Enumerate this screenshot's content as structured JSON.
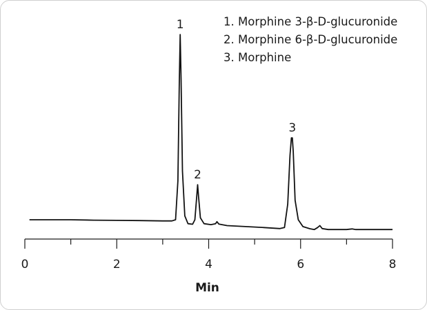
{
  "chart_data": {
    "type": "line",
    "title": "",
    "xlabel": "Min",
    "ylabel": "",
    "xlim": [
      0,
      8
    ],
    "ylim": [
      0,
      1
    ],
    "x_ticks": [
      0,
      2,
      4,
      6,
      8
    ],
    "x_tick_labels": [
      "0",
      "2",
      "4",
      "6",
      "8"
    ],
    "grid": false,
    "legend_position": "top-right",
    "legend": [
      "1. Morphine 3-β-D-glucuronide",
      "2. Morphine 6-β-D-glucuronide",
      "3. Morphine"
    ],
    "peaks": [
      {
        "label": "1",
        "x": 3.38,
        "y": 0.95
      },
      {
        "label": "2",
        "x": 3.76,
        "y": 0.18
      },
      {
        "label": "3",
        "x": 5.82,
        "y": 0.42
      }
    ],
    "series": [
      {
        "x": [
          0.1,
          0.5,
          1.0,
          1.5,
          2.0,
          2.5,
          3.0,
          3.2,
          3.28,
          3.33,
          3.36,
          3.38,
          3.4,
          3.43,
          3.48,
          3.55,
          3.65,
          3.7,
          3.74,
          3.76,
          3.78,
          3.82,
          3.9,
          4.05,
          4.15,
          4.18,
          4.22,
          4.4,
          4.8,
          5.2,
          5.55,
          5.65,
          5.72,
          5.77,
          5.8,
          5.82,
          5.84,
          5.88,
          5.95,
          6.05,
          6.2,
          6.3,
          6.37,
          6.42,
          6.47,
          6.6,
          7.0,
          7.12,
          7.2,
          7.5,
          8.0
        ],
        "y": [
          0.0,
          0.0,
          0.0,
          -0.002,
          -0.003,
          -0.004,
          -0.006,
          -0.006,
          0.0,
          0.2,
          0.7,
          0.95,
          0.72,
          0.25,
          0.02,
          -0.02,
          -0.023,
          0.0,
          0.12,
          0.18,
          0.12,
          0.01,
          -0.02,
          -0.025,
          -0.02,
          -0.01,
          -0.022,
          -0.03,
          -0.035,
          -0.04,
          -0.045,
          -0.04,
          0.08,
          0.33,
          0.42,
          0.42,
          0.35,
          0.1,
          0.0,
          -0.035,
          -0.046,
          -0.05,
          -0.04,
          -0.03,
          -0.045,
          -0.05,
          -0.05,
          -0.047,
          -0.05,
          -0.05,
          -0.05
        ]
      }
    ]
  }
}
